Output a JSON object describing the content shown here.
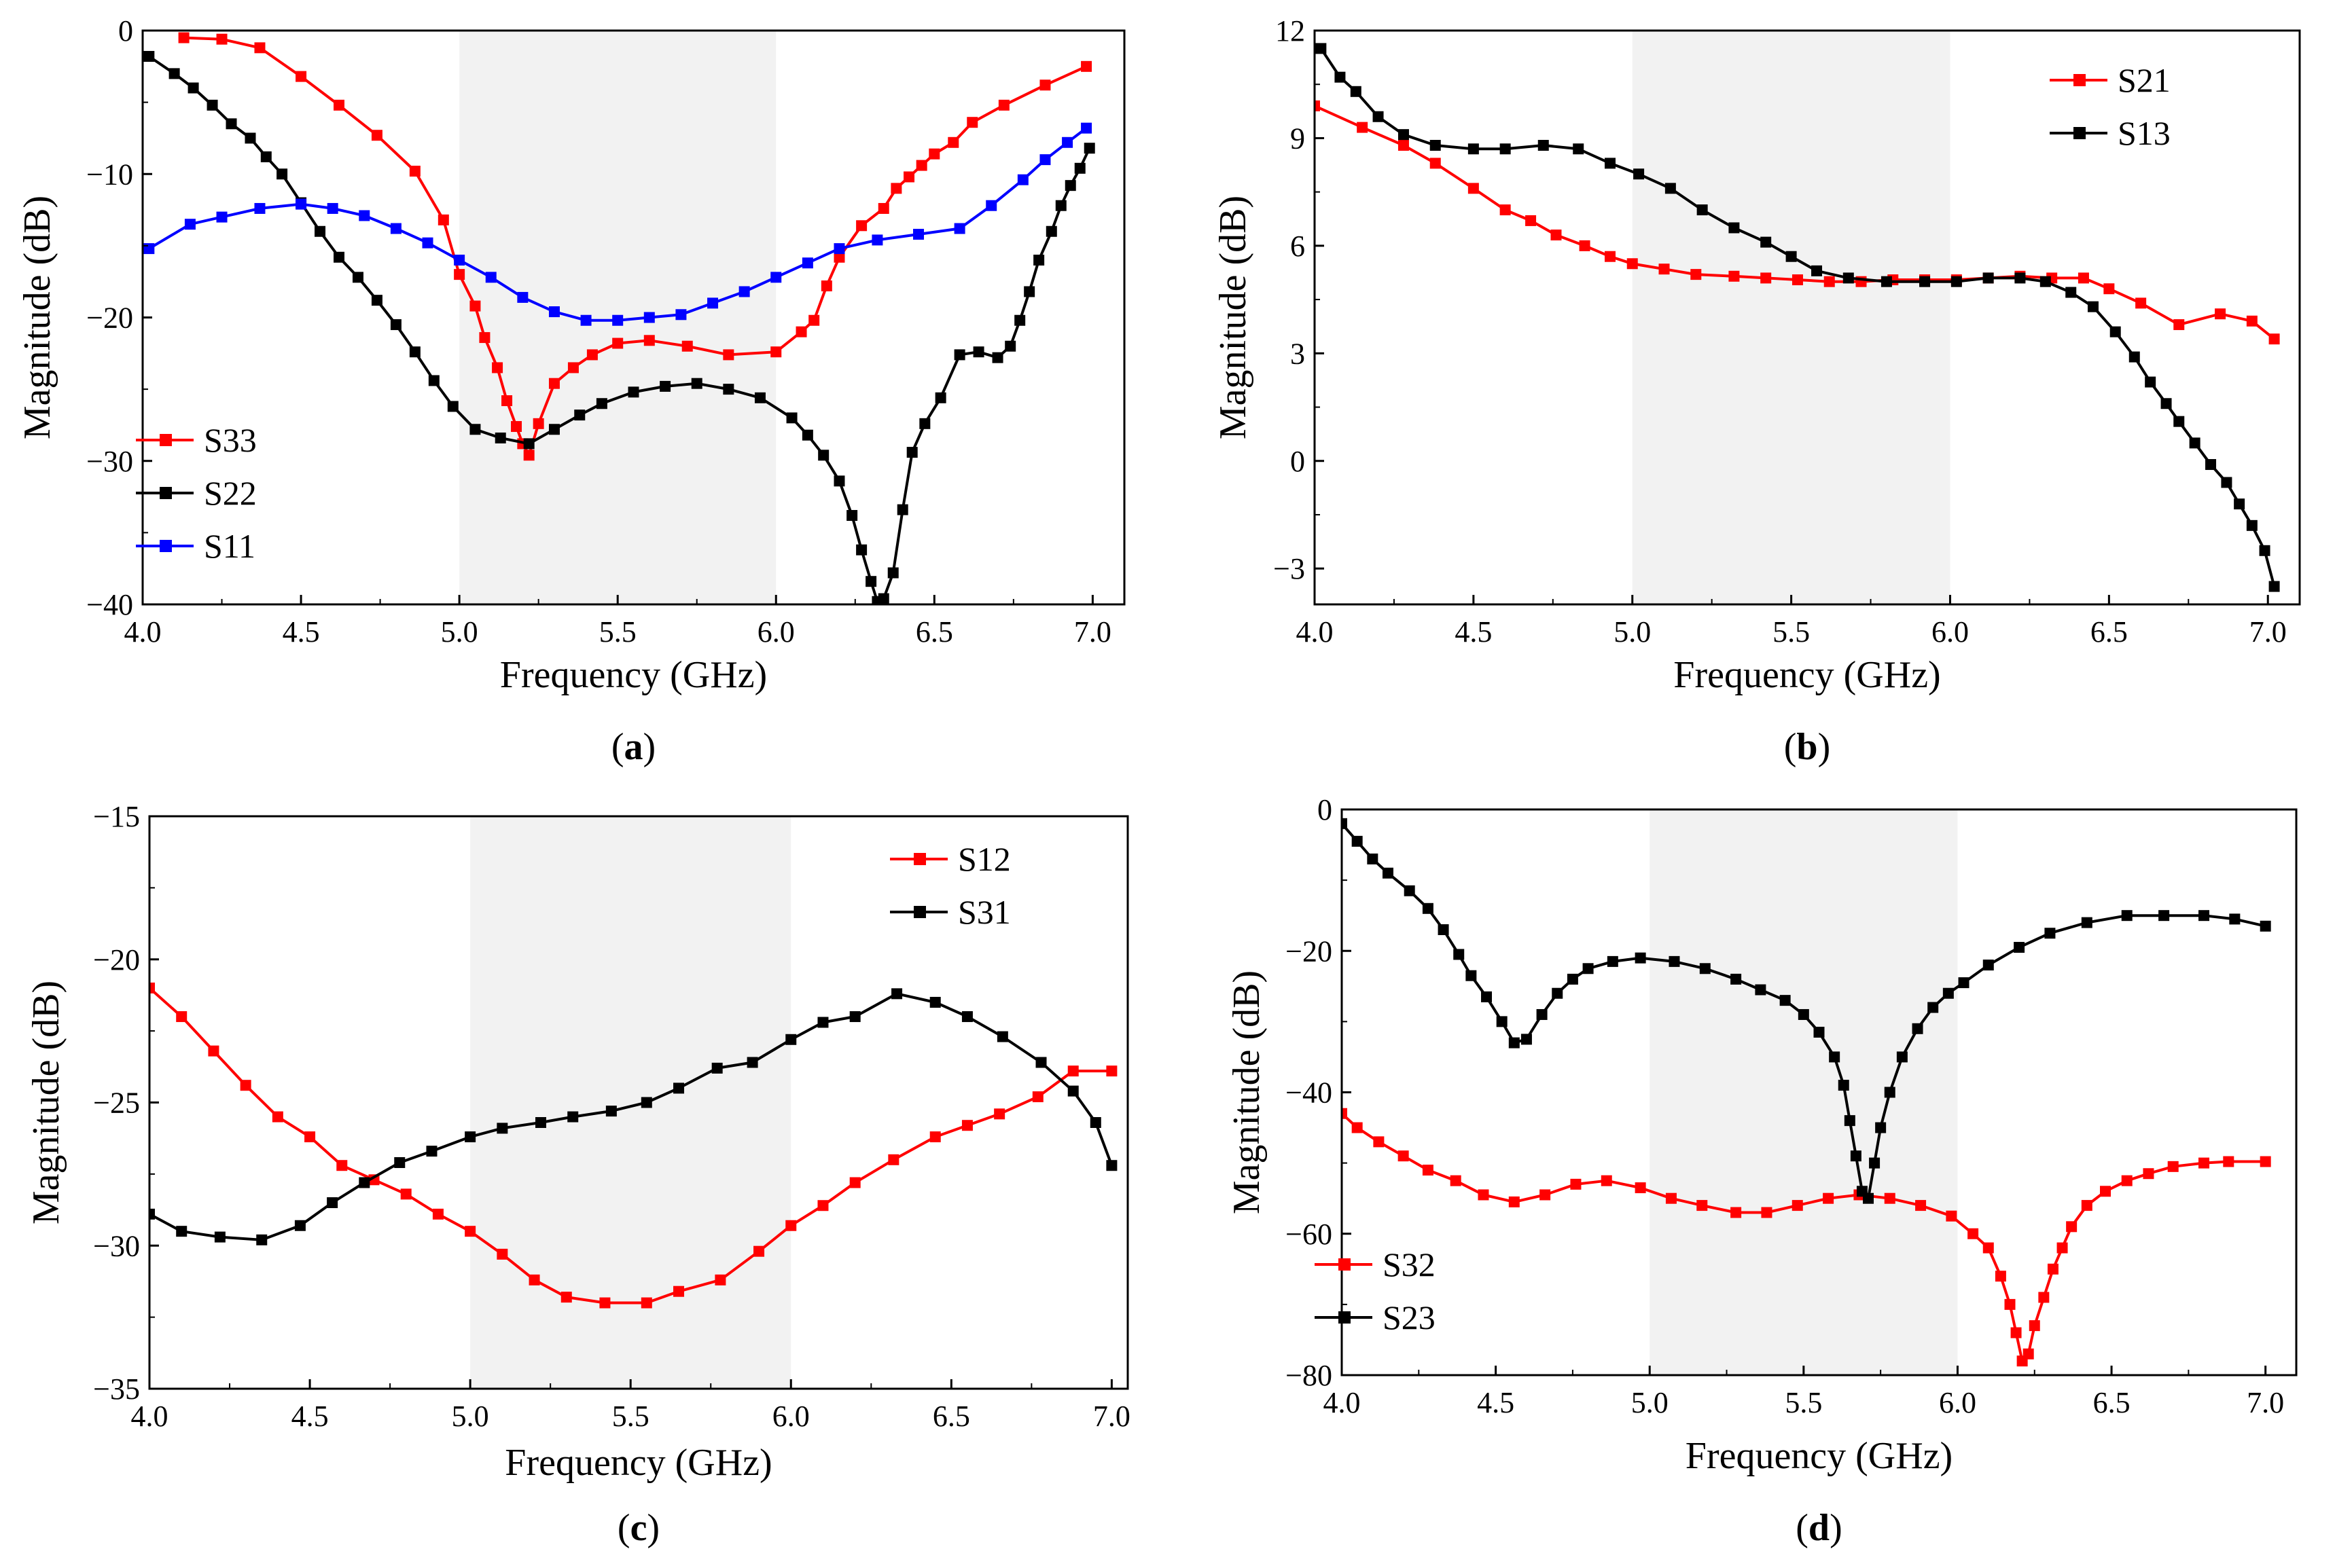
{
  "chart_data": [
    {
      "id": "a",
      "type": "line",
      "panel_label": "a",
      "xlabel": "Frequency (GHz)",
      "ylabel": "Magnitude (dB)",
      "xlim": [
        4.0,
        7.1
      ],
      "ylim": [
        -40,
        0
      ],
      "xticks": [
        "4.0",
        "4.5",
        "5.0",
        "5.5",
        "6.0",
        "6.5",
        "7.0"
      ],
      "yticks": [
        "0",
        "−10",
        "−20",
        "−30",
        "−40"
      ],
      "shaded_band": [
        5.0,
        6.0
      ],
      "legend_position": "lower-left",
      "series": [
        {
          "name": "S33",
          "color": "#ff0000",
          "x": [
            4.13,
            4.25,
            4.37,
            4.5,
            4.62,
            4.74,
            4.86,
            4.95,
            5.0,
            5.05,
            5.08,
            5.12,
            5.15,
            5.18,
            5.2,
            5.22,
            5.25,
            5.3,
            5.36,
            5.42,
            5.5,
            5.6,
            5.72,
            5.85,
            6.0,
            6.08,
            6.12,
            6.16,
            6.2,
            6.27,
            6.34,
            6.38,
            6.42,
            6.46,
            6.5,
            6.56,
            6.62,
            6.72,
            6.85,
            6.98
          ],
          "y": [
            -0.5,
            -0.6,
            -1.2,
            -3.2,
            -5.2,
            -7.3,
            -9.8,
            -13.2,
            -17.0,
            -19.2,
            -21.4,
            -23.5,
            -25.8,
            -27.6,
            -28.8,
            -29.6,
            -27.4,
            -24.6,
            -23.5,
            -22.6,
            -21.8,
            -21.6,
            -22.0,
            -22.6,
            -22.4,
            -21.0,
            -20.2,
            -17.8,
            -15.8,
            -13.6,
            -12.4,
            -11.0,
            -10.2,
            -9.4,
            -8.6,
            -7.8,
            -6.4,
            -5.2,
            -3.8,
            -2.5
          ]
        },
        {
          "name": "S22",
          "color": "#000000",
          "x": [
            4.02,
            4.1,
            4.16,
            4.22,
            4.28,
            4.34,
            4.39,
            4.44,
            4.5,
            4.56,
            4.62,
            4.68,
            4.74,
            4.8,
            4.86,
            4.92,
            4.98,
            5.05,
            5.13,
            5.22,
            5.3,
            5.38,
            5.45,
            5.55,
            5.65,
            5.75,
            5.85,
            5.95,
            6.05,
            6.1,
            6.15,
            6.2,
            6.24,
            6.27,
            6.3,
            6.32,
            6.34,
            6.37,
            6.4,
            6.43,
            6.47,
            6.52,
            6.58,
            6.64,
            6.7,
            6.74,
            6.77,
            6.8,
            6.83,
            6.87,
            6.9,
            6.93,
            6.96,
            6.99
          ],
          "y": [
            -1.8,
            -3.0,
            -4.0,
            -5.2,
            -6.5,
            -7.5,
            -8.8,
            -10.0,
            -12.0,
            -14.0,
            -15.8,
            -17.2,
            -18.8,
            -20.5,
            -22.4,
            -24.4,
            -26.2,
            -27.8,
            -28.4,
            -28.8,
            -27.8,
            -26.8,
            -26.0,
            -25.2,
            -24.8,
            -24.6,
            -25.0,
            -25.6,
            -27.0,
            -28.2,
            -29.6,
            -31.4,
            -33.8,
            -36.2,
            -38.4,
            -39.8,
            -39.6,
            -37.8,
            -33.4,
            -29.4,
            -27.4,
            -25.6,
            -22.6,
            -22.4,
            -22.8,
            -22.0,
            -20.2,
            -18.2,
            -16.0,
            -14.0,
            -12.2,
            -10.8,
            -9.6,
            -8.2
          ]
        },
        {
          "name": "S11",
          "color": "#0000ff",
          "x": [
            4.02,
            4.15,
            4.25,
            4.37,
            4.5,
            4.6,
            4.7,
            4.8,
            4.9,
            5.0,
            5.1,
            5.2,
            5.3,
            5.4,
            5.5,
            5.6,
            5.7,
            5.8,
            5.9,
            6.0,
            6.1,
            6.2,
            6.32,
            6.45,
            6.58,
            6.68,
            6.78,
            6.85,
            6.92,
            6.98
          ],
          "y": [
            -15.2,
            -13.5,
            -13.0,
            -12.4,
            -12.1,
            -12.4,
            -12.9,
            -13.8,
            -14.8,
            -16.0,
            -17.2,
            -18.6,
            -19.6,
            -20.2,
            -20.2,
            -20.0,
            -19.8,
            -19.0,
            -18.2,
            -17.2,
            -16.2,
            -15.2,
            -14.6,
            -14.2,
            -13.8,
            -12.2,
            -10.4,
            -9.0,
            -7.8,
            -6.8
          ]
        }
      ]
    },
    {
      "id": "b",
      "type": "line",
      "panel_label": "b",
      "xlabel": "Frequency (GHz)",
      "ylabel": "Magnitude (dB)",
      "xlim": [
        4.0,
        7.1
      ],
      "ylim": [
        -4,
        12
      ],
      "xticks": [
        "4.0",
        "4.5",
        "5.0",
        "5.5",
        "6.0",
        "6.5",
        "7.0"
      ],
      "yticks": [
        "12",
        "9",
        "6",
        "3",
        "0",
        "−3"
      ],
      "shaded_band": [
        5.0,
        6.0
      ],
      "legend_position": "top-right",
      "series": [
        {
          "name": "S21",
          "color": "#ff0000",
          "x": [
            4.0,
            4.15,
            4.28,
            4.38,
            4.5,
            4.6,
            4.68,
            4.76,
            4.85,
            4.93,
            5.0,
            5.1,
            5.2,
            5.32,
            5.42,
            5.52,
            5.62,
            5.72,
            5.82,
            5.92,
            6.02,
            6.12,
            6.22,
            6.32,
            6.42,
            6.5,
            6.6,
            6.72,
            6.85,
            6.95,
            7.02
          ],
          "y": [
            9.9,
            9.3,
            8.8,
            8.3,
            7.6,
            7.0,
            6.7,
            6.3,
            6.0,
            5.7,
            5.5,
            5.35,
            5.2,
            5.15,
            5.1,
            5.05,
            5.0,
            5.0,
            5.05,
            5.05,
            5.05,
            5.1,
            5.15,
            5.1,
            5.1,
            4.8,
            4.4,
            3.8,
            4.1,
            3.9,
            3.4
          ]
        },
        {
          "name": "S13",
          "color": "#000000",
          "x": [
            4.02,
            4.08,
            4.13,
            4.2,
            4.28,
            4.38,
            4.5,
            4.6,
            4.72,
            4.83,
            4.93,
            5.02,
            5.12,
            5.22,
            5.32,
            5.42,
            5.5,
            5.58,
            5.68,
            5.8,
            5.92,
            6.02,
            6.12,
            6.22,
            6.3,
            6.38,
            6.45,
            6.52,
            6.58,
            6.63,
            6.68,
            6.72,
            6.77,
            6.82,
            6.87,
            6.91,
            6.95,
            6.99,
            7.02
          ],
          "y": [
            11.5,
            10.7,
            10.3,
            9.6,
            9.1,
            8.8,
            8.7,
            8.7,
            8.8,
            8.7,
            8.3,
            8.0,
            7.6,
            7.0,
            6.5,
            6.1,
            5.7,
            5.3,
            5.1,
            5.0,
            5.0,
            5.0,
            5.1,
            5.1,
            5.0,
            4.7,
            4.3,
            3.6,
            2.9,
            2.2,
            1.6,
            1.1,
            0.5,
            -0.1,
            -0.6,
            -1.2,
            -1.8,
            -2.5,
            -3.5
          ]
        }
      ]
    },
    {
      "id": "c",
      "type": "line",
      "panel_label": "c",
      "xlabel": "Frequency (GHz)",
      "ylabel": "Magnitude (dB)",
      "xlim": [
        4.0,
        7.05
      ],
      "ylim": [
        -35,
        -15
      ],
      "xticks": [
        "4.0",
        "4.5",
        "5.0",
        "5.5",
        "6.0",
        "6.5",
        "7.0"
      ],
      "yticks": [
        "−15",
        "−20",
        "−25",
        "−30",
        "−35"
      ],
      "shaded_band": [
        5.0,
        6.0
      ],
      "legend_position": "top-right",
      "series": [
        {
          "name": "S12",
          "color": "#ff0000",
          "x": [
            4.0,
            4.1,
            4.2,
            4.3,
            4.4,
            4.5,
            4.6,
            4.7,
            4.8,
            4.9,
            5.0,
            5.1,
            5.2,
            5.3,
            5.42,
            5.55,
            5.65,
            5.78,
            5.9,
            6.0,
            6.1,
            6.2,
            6.32,
            6.45,
            6.55,
            6.65,
            6.77,
            6.88,
            7.0
          ],
          "y": [
            -21.0,
            -22.0,
            -23.2,
            -24.4,
            -25.5,
            -26.2,
            -27.2,
            -27.7,
            -28.2,
            -28.9,
            -29.5,
            -30.3,
            -31.2,
            -31.8,
            -32.0,
            -32.0,
            -31.6,
            -31.2,
            -30.2,
            -29.3,
            -28.6,
            -27.8,
            -27.0,
            -26.2,
            -25.8,
            -25.4,
            -24.8,
            -23.9,
            -23.9
          ]
        },
        {
          "name": "S31",
          "color": "#000000",
          "x": [
            4.0,
            4.1,
            4.22,
            4.35,
            4.47,
            4.57,
            4.67,
            4.78,
            4.88,
            5.0,
            5.1,
            5.22,
            5.32,
            5.44,
            5.55,
            5.65,
            5.77,
            5.88,
            6.0,
            6.1,
            6.2,
            6.33,
            6.45,
            6.55,
            6.66,
            6.78,
            6.88,
            6.95,
            7.0
          ],
          "y": [
            -28.9,
            -29.5,
            -29.7,
            -29.8,
            -29.3,
            -28.5,
            -27.8,
            -27.1,
            -26.7,
            -26.2,
            -25.9,
            -25.7,
            -25.5,
            -25.3,
            -25.0,
            -24.5,
            -23.8,
            -23.6,
            -22.8,
            -22.2,
            -22.0,
            -21.2,
            -21.5,
            -22.0,
            -22.7,
            -23.6,
            -24.6,
            -25.7,
            -27.2
          ]
        }
      ]
    },
    {
      "id": "d",
      "type": "line",
      "panel_label": "d",
      "xlabel": "Frequency (GHz)",
      "ylabel": "Magnitude (dB)",
      "xlim": [
        4.0,
        7.1
      ],
      "ylim": [
        -80,
        0
      ],
      "xticks": [
        "4.0",
        "4.5",
        "5.0",
        "5.5",
        "6.0",
        "6.5",
        "7.0"
      ],
      "yticks": [
        "0",
        "−20",
        "−40",
        "−60",
        "−80"
      ],
      "shaded_band": [
        5.0,
        6.0
      ],
      "legend_position": "lower-left",
      "series": [
        {
          "name": "S32",
          "color": "#ff0000",
          "x": [
            4.0,
            4.05,
            4.12,
            4.2,
            4.28,
            4.37,
            4.46,
            4.56,
            4.66,
            4.76,
            4.86,
            4.97,
            5.07,
            5.17,
            5.28,
            5.38,
            5.48,
            5.58,
            5.68,
            5.78,
            5.88,
            5.98,
            6.05,
            6.1,
            6.14,
            6.17,
            6.19,
            6.21,
            6.23,
            6.25,
            6.28,
            6.31,
            6.34,
            6.37,
            6.42,
            6.48,
            6.55,
            6.62,
            6.7,
            6.8,
            6.88,
            7.0
          ],
          "y": [
            -43.0,
            -45.0,
            -47.0,
            -49.0,
            -51.0,
            -52.5,
            -54.5,
            -55.5,
            -54.5,
            -53.0,
            -52.5,
            -53.5,
            -55.0,
            -56.0,
            -57.0,
            -57.0,
            -56.0,
            -55.0,
            -54.5,
            -55.0,
            -56.0,
            -57.5,
            -60.0,
            -62.0,
            -66.0,
            -70.0,
            -74.0,
            -78.0,
            -77.0,
            -73.0,
            -69.0,
            -65.0,
            -62.0,
            -59.0,
            -56.0,
            -54.0,
            -52.5,
            -51.5,
            -50.5,
            -50.0,
            -49.8,
            -49.8
          ]
        },
        {
          "name": "S23",
          "color": "#000000",
          "x": [
            4.0,
            4.05,
            4.1,
            4.15,
            4.22,
            4.28,
            4.33,
            4.38,
            4.42,
            4.47,
            4.52,
            4.56,
            4.6,
            4.65,
            4.7,
            4.75,
            4.8,
            4.88,
            4.97,
            5.08,
            5.18,
            5.28,
            5.36,
            5.44,
            5.5,
            5.55,
            5.6,
            5.63,
            5.65,
            5.67,
            5.69,
            5.71,
            5.73,
            5.75,
            5.78,
            5.82,
            5.87,
            5.92,
            5.97,
            6.02,
            6.1,
            6.2,
            6.3,
            6.42,
            6.55,
            6.67,
            6.8,
            6.9,
            7.0
          ],
          "y": [
            -2.0,
            -4.5,
            -7.0,
            -9.0,
            -11.5,
            -14.0,
            -17.0,
            -20.5,
            -23.5,
            -26.5,
            -30.0,
            -33.0,
            -32.5,
            -29.0,
            -26.0,
            -24.0,
            -22.5,
            -21.5,
            -21.0,
            -21.5,
            -22.5,
            -24.0,
            -25.5,
            -27.0,
            -29.0,
            -31.5,
            -35.0,
            -39.0,
            -44.0,
            -49.0,
            -54.0,
            -55.0,
            -50.0,
            -45.0,
            -40.0,
            -35.0,
            -31.0,
            -28.0,
            -26.0,
            -24.5,
            -22.0,
            -19.5,
            -17.5,
            -16.0,
            -15.0,
            -15.0,
            -15.0,
            -15.5,
            -16.5
          ]
        }
      ]
    }
  ]
}
